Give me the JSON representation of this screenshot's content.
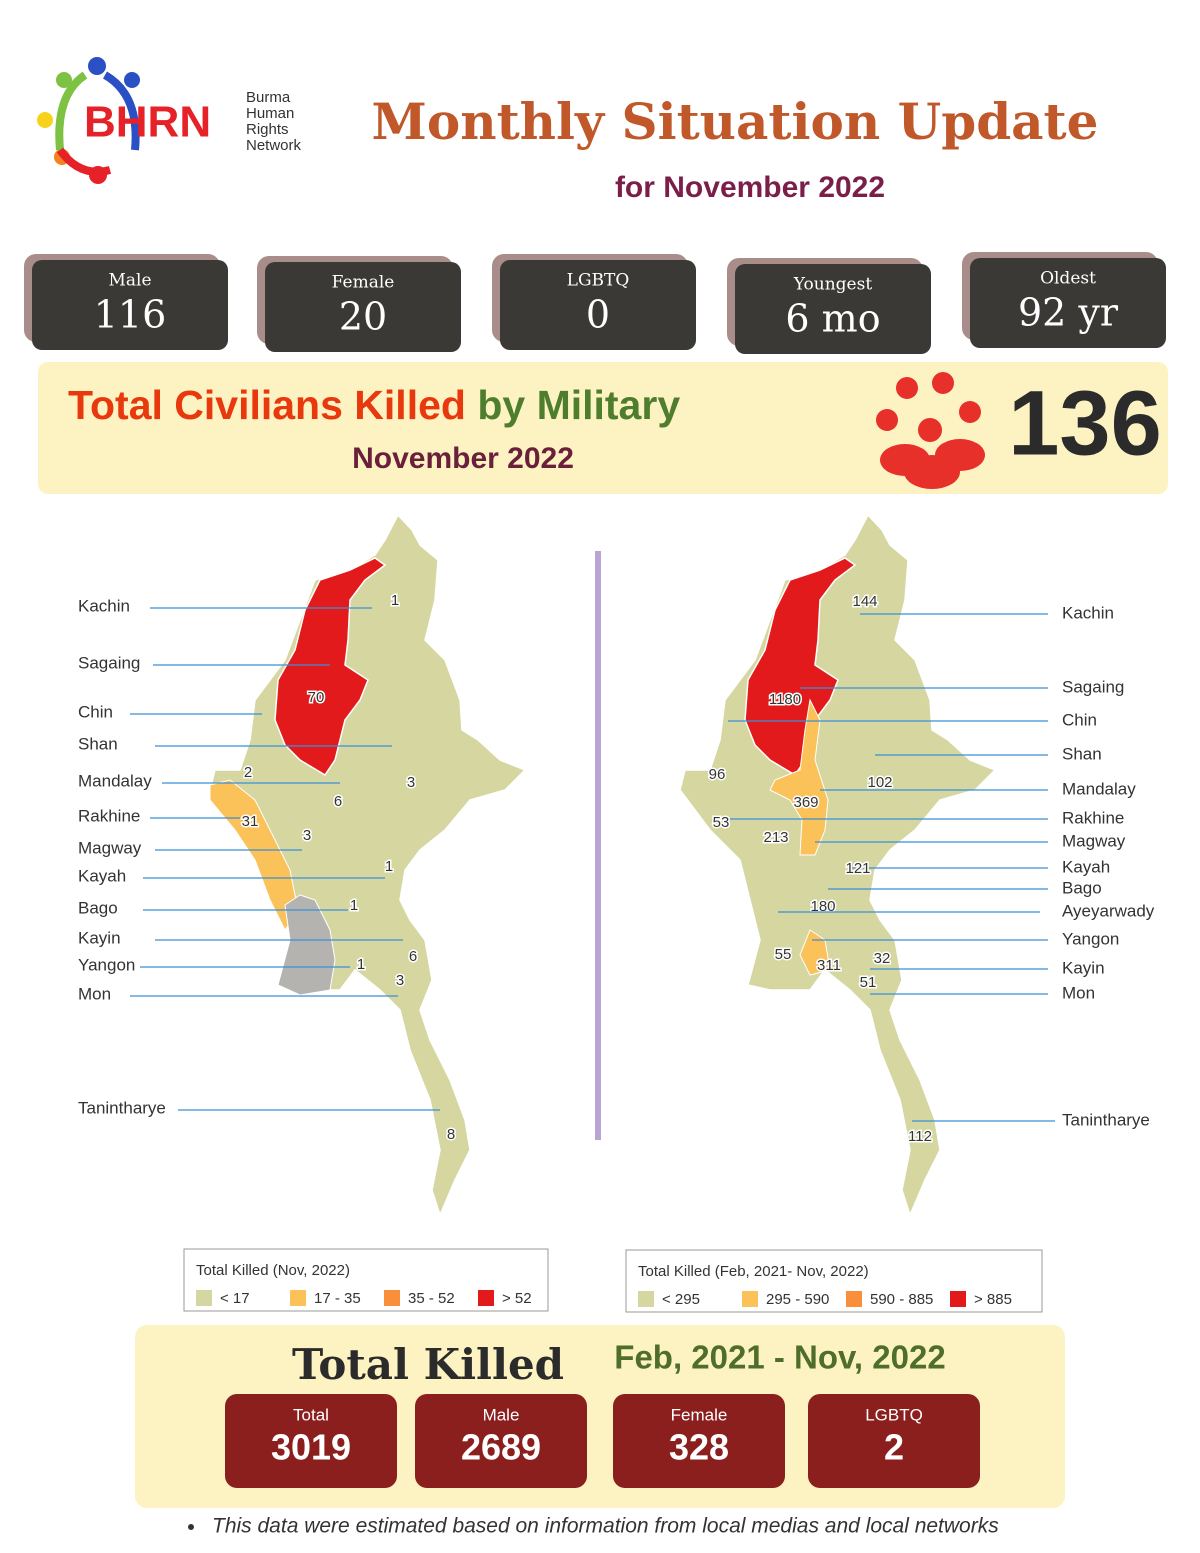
{
  "header": {
    "logo": {
      "acronym": "BHRN",
      "lines": [
        "Burma",
        "Human",
        "Rights",
        "Network"
      ]
    },
    "title": "Monthly Situation Update",
    "subtitle": "for November 2022"
  },
  "stats": [
    {
      "label": "Male",
      "value": 116
    },
    {
      "label": "Female",
      "value": 20
    },
    {
      "label": "LGBTQ",
      "value": 0
    },
    {
      "label": "Youngest",
      "value": "6 mo"
    },
    {
      "label": "Oldest",
      "value": "92 yr"
    }
  ],
  "banner": {
    "title_part1": "Total Civilians Killed",
    "title_part2": "by Military",
    "subtitle": "November 2022",
    "total": 136
  },
  "maps": [
    {
      "regions": [
        {
          "name": "Kachin",
          "value": 1
        },
        {
          "name": "Sagaing",
          "value": 70
        },
        {
          "name": "Chin",
          "value": 2
        },
        {
          "name": "Shan",
          "value": 3
        },
        {
          "name": "Mandalay",
          "value": 6
        },
        {
          "name": "Rakhine",
          "value": 31
        },
        {
          "name": "Magway",
          "value": 3
        },
        {
          "name": "Kayah",
          "value": 1
        },
        {
          "name": "Bago",
          "value": 1
        },
        {
          "name": "Kayin",
          "value": 6
        },
        {
          "name": "Yangon",
          "value": 1
        },
        {
          "name": "Mon",
          "value": 3
        },
        {
          "name": "Tanintharye",
          "value": 8
        }
      ],
      "legend": {
        "title": "Total Killed (Nov, 2022)",
        "items": [
          {
            "label": "< 17",
            "color": "#d6d6a0"
          },
          {
            "label": "17 - 35",
            "color": "#fcc25a"
          },
          {
            "label": "35 - 52",
            "color": "#f98f3a"
          },
          {
            "label": "> 52",
            "color": "#e31a1c"
          }
        ]
      }
    },
    {
      "regions": [
        {
          "name": "Kachin",
          "value": 144
        },
        {
          "name": "Sagaing",
          "value": 1180
        },
        {
          "name": "Chin",
          "value": 96
        },
        {
          "name": "Shan",
          "value": 102
        },
        {
          "name": "Mandalay",
          "value": 369
        },
        {
          "name": "Rakhine",
          "value": 53
        },
        {
          "name": "Magway",
          "value": 213
        },
        {
          "name": "Kayah",
          "value": 121
        },
        {
          "name": "Bago",
          "value": 180
        },
        {
          "name": "Ayeyarwady",
          "value": 55
        },
        {
          "name": "Yangon",
          "value": 311
        },
        {
          "name": "Kayin",
          "value": 32
        },
        {
          "name": "Mon",
          "value": 51
        },
        {
          "name": "Tanintharye",
          "value": 112
        }
      ],
      "legend": {
        "title": "Total Killed (Feb, 2021- Nov, 2022)",
        "items": [
          {
            "label": "< 295",
            "color": "#d6d6a0"
          },
          {
            "label": "295 - 590",
            "color": "#fcc25a"
          },
          {
            "label": "590 - 885",
            "color": "#f98f3a"
          },
          {
            "label": "> 885",
            "color": "#e31a1c"
          }
        ]
      }
    }
  ],
  "totals": {
    "title": "Total Killed",
    "period": "Feb, 2021 - Nov, 2022",
    "items": [
      {
        "label": "Total",
        "value": 3019
      },
      {
        "label": "Male",
        "value": 2689
      },
      {
        "label": "Female",
        "value": 328
      },
      {
        "label": "LGBTQ",
        "value": 2
      }
    ]
  },
  "footnote": "This data were estimated based on information from local medias and local networks"
}
